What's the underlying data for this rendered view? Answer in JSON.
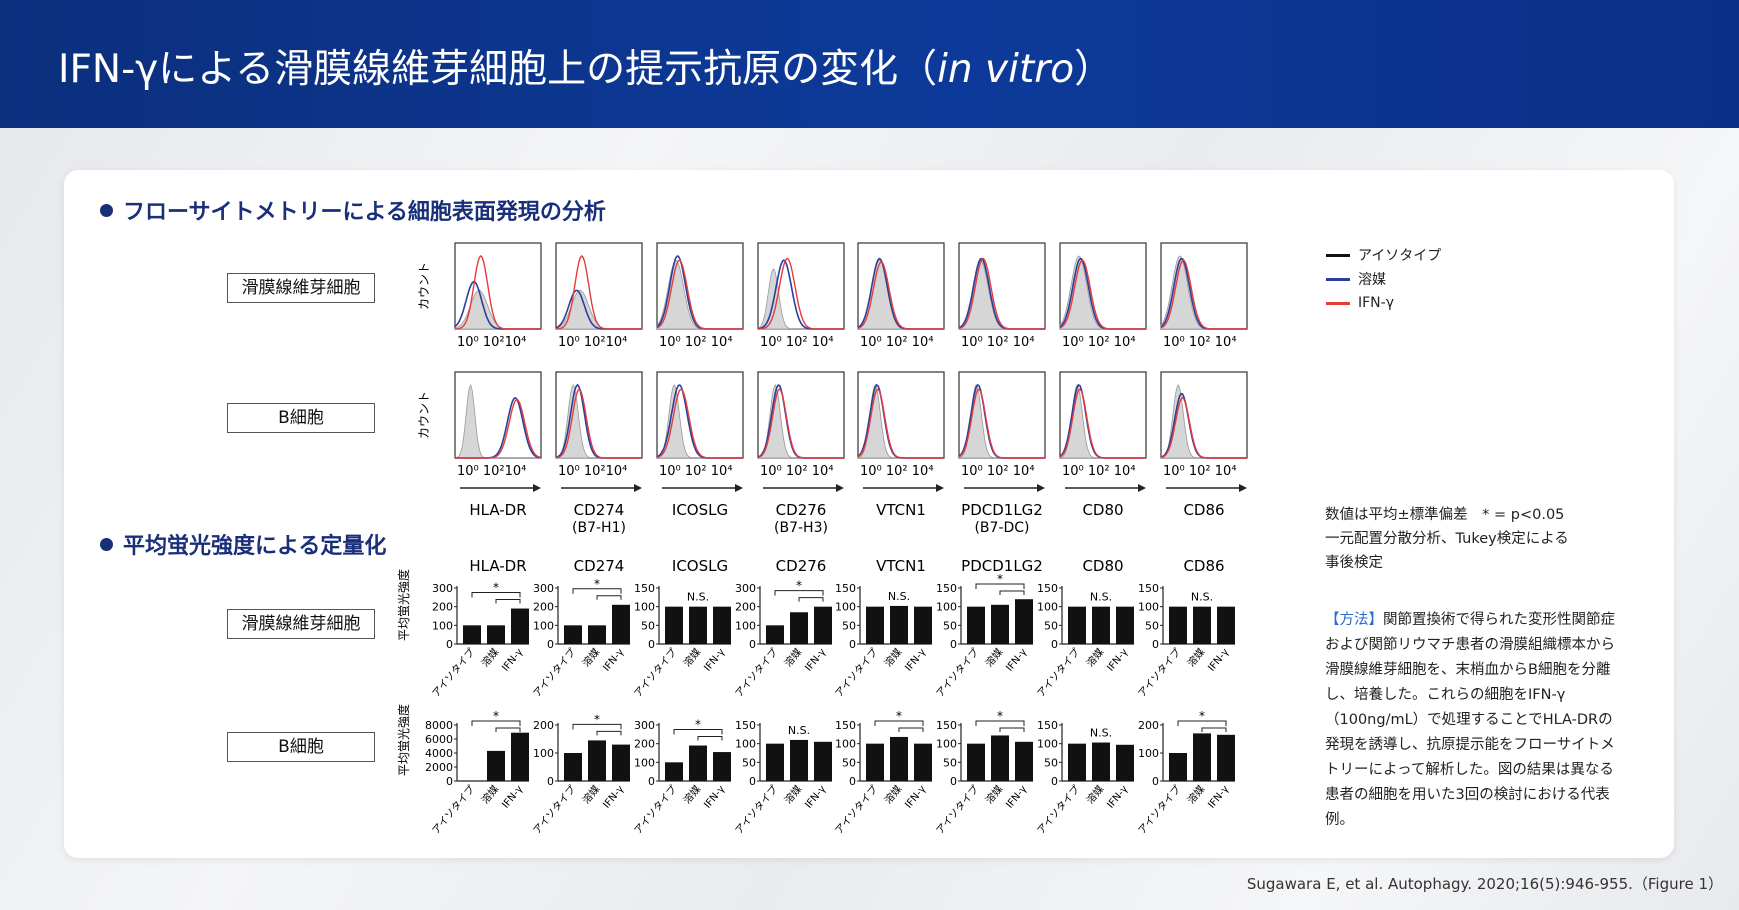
{
  "header": {
    "title_main": "IFN-γによる滑膜線維芽細胞上の提示抗原の変化（",
    "title_italic": "in vitro",
    "title_end": "）"
  },
  "colors": {
    "header_bg": "#0b2f7d",
    "isotype": "#111111",
    "vehicle": "#2a3f9e",
    "ifn": "#e53b3b",
    "section": "#1a2f7a",
    "method_head": "#2a6bc4"
  },
  "sections": {
    "flow": "フローサイトメトリーによる細胞表面発現の分析",
    "mfi": "平均蛍光強度による定量化"
  },
  "row_labels": {
    "fibroblast": "滑膜線維芽細胞",
    "bcell": "B細胞"
  },
  "flow": {
    "y_label": "カウント",
    "x_tick_labels": [
      "10⁰ 10²10⁴",
      "10⁰ 10²10⁴",
      "10⁰ 10² 10⁴",
      "10⁰ 10² 10⁴",
      "10⁰ 10² 10⁴",
      "10⁰ 10² 10⁴",
      "10⁰ 10² 10⁴",
      "10⁰ 10² 10⁴"
    ],
    "markers": [
      "HLA-DR",
      "CD274",
      "ICOSLG",
      "CD276",
      "VTCN1",
      "PDCD1LG2",
      "CD80",
      "CD86"
    ],
    "marker_sub": [
      "",
      "(B7-H1)",
      "",
      "(B7-H3)",
      "",
      "(B7-DC)",
      "",
      ""
    ]
  },
  "legend": {
    "isotype": "アイソタイプ",
    "vehicle": "溶媒",
    "ifn": "IFN-γ"
  },
  "mfi": {
    "y_label": "平均蛍光強度",
    "x_labels": [
      "アイソタイプ",
      "溶媒",
      "IFN-γ"
    ],
    "titles": [
      "HLA-DR",
      "CD274",
      "ICOSLG",
      "CD276",
      "VTCN1",
      "PDCD1LG2",
      "CD80",
      "CD86"
    ],
    "ns": "N.S.",
    "star": "*"
  },
  "chart_data": [
    {
      "type": "bar",
      "title": "HLA-DR",
      "group": "滑膜線維芽細胞",
      "categories": [
        "アイソタイプ",
        "溶媒",
        "IFN-γ"
      ],
      "values": [
        100,
        100,
        190
      ],
      "ylim": [
        0,
        300
      ],
      "yticks": [
        0,
        100,
        200,
        300
      ],
      "significance": "*"
    },
    {
      "type": "bar",
      "title": "CD274",
      "group": "滑膜線維芽細胞",
      "categories": [
        "アイソタイプ",
        "溶媒",
        "IFN-γ"
      ],
      "values": [
        100,
        100,
        210
      ],
      "ylim": [
        0,
        300
      ],
      "yticks": [
        0,
        100,
        200,
        300
      ],
      "significance": "*"
    },
    {
      "type": "bar",
      "title": "ICOSLG",
      "group": "滑膜線維芽細胞",
      "categories": [
        "アイソタイプ",
        "溶媒",
        "IFN-γ"
      ],
      "values": [
        100,
        100,
        100
      ],
      "ylim": [
        0,
        150
      ],
      "yticks": [
        0,
        50,
        100,
        150
      ],
      "significance": "N.S."
    },
    {
      "type": "bar",
      "title": "CD276",
      "group": "滑膜線維芽細胞",
      "categories": [
        "アイソタイプ",
        "溶媒",
        "IFN-γ"
      ],
      "values": [
        100,
        170,
        200
      ],
      "ylim": [
        0,
        300
      ],
      "yticks": [
        0,
        100,
        200,
        300
      ],
      "significance": "*"
    },
    {
      "type": "bar",
      "title": "VTCN1",
      "group": "滑膜線維芽細胞",
      "categories": [
        "アイソタイプ",
        "溶媒",
        "IFN-γ"
      ],
      "values": [
        100,
        102,
        100
      ],
      "ylim": [
        0,
        150
      ],
      "yticks": [
        0,
        50,
        100,
        150
      ],
      "significance": "N.S."
    },
    {
      "type": "bar",
      "title": "PDCD1LG2",
      "group": "滑膜線維芽細胞",
      "categories": [
        "アイソタイプ",
        "溶媒",
        "IFN-γ"
      ],
      "values": [
        100,
        105,
        120
      ],
      "ylim": [
        0,
        150
      ],
      "yticks": [
        0,
        50,
        100,
        150
      ],
      "significance": "*"
    },
    {
      "type": "bar",
      "title": "CD80",
      "group": "滑膜線維芽細胞",
      "categories": [
        "アイソタイプ",
        "溶媒",
        "IFN-γ"
      ],
      "values": [
        100,
        100,
        100
      ],
      "ylim": [
        0,
        150
      ],
      "yticks": [
        0,
        50,
        100,
        150
      ],
      "significance": "N.S."
    },
    {
      "type": "bar",
      "title": "CD86",
      "group": "滑膜線維芽細胞",
      "categories": [
        "アイソタイプ",
        "溶媒",
        "IFN-γ"
      ],
      "values": [
        100,
        100,
        100
      ],
      "ylim": [
        0,
        150
      ],
      "yticks": [
        0,
        50,
        100,
        150
      ],
      "significance": "N.S."
    },
    {
      "type": "bar",
      "title": "HLA-DR",
      "group": "B細胞",
      "categories": [
        "アイソタイプ",
        "溶媒",
        "IFN-γ"
      ],
      "values": [
        0,
        4300,
        6900
      ],
      "ylim": [
        0,
        8000
      ],
      "yticks": [
        0,
        2000,
        4000,
        6000,
        8000
      ],
      "significance": "*"
    },
    {
      "type": "bar",
      "title": "CD274",
      "group": "B細胞",
      "categories": [
        "アイソタイプ",
        "溶媒",
        "IFN-γ"
      ],
      "values": [
        100,
        145,
        130
      ],
      "ylim": [
        0,
        200
      ],
      "yticks": [
        0,
        100,
        200
      ],
      "significance": "*"
    },
    {
      "type": "bar",
      "title": "ICOSLG",
      "group": "B細胞",
      "categories": [
        "アイソタイプ",
        "溶媒",
        "IFN-γ"
      ],
      "values": [
        100,
        190,
        155
      ],
      "ylim": [
        0,
        300
      ],
      "yticks": [
        0,
        100,
        200,
        300
      ],
      "significance": "*"
    },
    {
      "type": "bar",
      "title": "CD276",
      "group": "B細胞",
      "categories": [
        "アイソタイプ",
        "溶媒",
        "IFN-γ"
      ],
      "values": [
        100,
        110,
        105
      ],
      "ylim": [
        0,
        150
      ],
      "yticks": [
        0,
        50,
        100,
        150
      ],
      "significance": "N.S."
    },
    {
      "type": "bar",
      "title": "VTCN1",
      "group": "B細胞",
      "categories": [
        "アイソタイプ",
        "溶媒",
        "IFN-γ"
      ],
      "values": [
        100,
        118,
        100
      ],
      "ylim": [
        0,
        150
      ],
      "yticks": [
        0,
        50,
        100,
        150
      ],
      "significance": "*"
    },
    {
      "type": "bar",
      "title": "PDCD1LG2",
      "group": "B細胞",
      "categories": [
        "アイソタイプ",
        "溶媒",
        "IFN-γ"
      ],
      "values": [
        100,
        122,
        105
      ],
      "ylim": [
        0,
        150
      ],
      "yticks": [
        0,
        50,
        100,
        150
      ],
      "significance": "*"
    },
    {
      "type": "bar",
      "title": "CD80",
      "group": "B細胞",
      "categories": [
        "アイソタイプ",
        "溶媒",
        "IFN-γ"
      ],
      "values": [
        100,
        103,
        97
      ],
      "ylim": [
        0,
        150
      ],
      "yticks": [
        0,
        50,
        100,
        150
      ],
      "significance": "N.S."
    },
    {
      "type": "bar",
      "title": "CD86",
      "group": "B細胞",
      "categories": [
        "アイソタイプ",
        "溶媒",
        "IFN-γ"
      ],
      "values": [
        100,
        170,
        165
      ],
      "ylim": [
        0,
        200
      ],
      "yticks": [
        0,
        100,
        200
      ],
      "significance": "*"
    }
  ],
  "note": {
    "line1": "数値は平均±標準偏差　* = p<0.05",
    "line2": "一元配置分散分析、Tukey検定による",
    "line3": "事後検定"
  },
  "method": {
    "head": "【方法】",
    "text": "関節置換術で得られた変形性関節症および関節リウマチ患者の滑膜組織標本から滑膜線維芽細胞を、末梢血からB細胞を分離し、培養した。これらの細胞をIFN-γ（100ng/mL）で処理することでHLA-DRの発現を誘導し、抗原提示能をフローサイトメトリーによって解析した。図の結果は異なる患者の細胞を用いた3回の検討における代表例。"
  },
  "citation": "Sugawara E, et al. Autophagy. 2020;16(5):946-955.（Figure 1）"
}
